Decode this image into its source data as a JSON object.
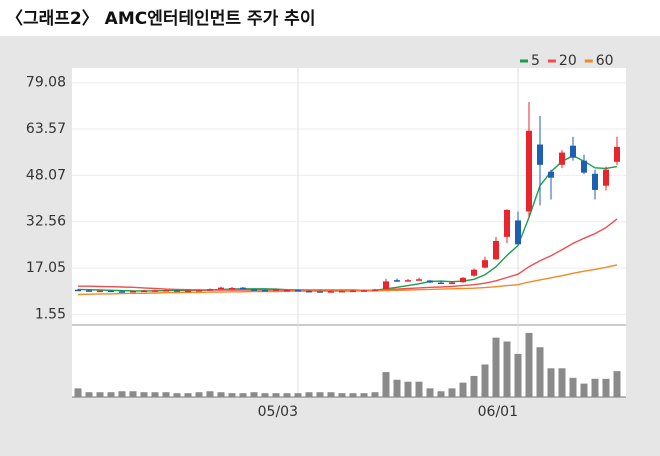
{
  "chart_data": {
    "type": "candlestick",
    "title": "〈그래프2〉 AMC엔터테인먼트 주가 추이",
    "categories": [
      null,
      null,
      null,
      null,
      null,
      null,
      null,
      null,
      null,
      null,
      null,
      null,
      null,
      null,
      null,
      null,
      null,
      null,
      null,
      null,
      "05/03",
      null,
      null,
      null,
      null,
      null,
      null,
      null,
      null,
      null,
      null,
      null,
      null,
      null,
      null,
      null,
      null,
      null,
      null,
      null,
      "06/01",
      null,
      null,
      null,
      null,
      null,
      null,
      null,
      null,
      null
    ],
    "open": [
      9.8,
      9.6,
      9.4,
      9.5,
      9.3,
      9.2,
      9.4,
      9.5,
      9.6,
      9.6,
      9.4,
      9.5,
      9.7,
      10.1,
      10.3,
      10.5,
      9.9,
      9.7,
      9.8,
      9.6,
      9.7,
      9.4,
      9.3,
      9.2,
      9.3,
      9.4,
      9.5,
      9.6,
      10.0,
      13.0,
      12.9,
      13.1,
      12.9,
      12.2,
      12.1,
      12.3,
      14.5,
      17.2,
      20.0,
      27.5,
      33.0,
      36.0,
      58.4,
      49.3,
      51.6,
      58.0,
      53.0,
      48.6,
      44.6,
      52.6
    ],
    "high": [
      10.1,
      9.9,
      9.7,
      9.7,
      9.6,
      9.6,
      9.7,
      9.8,
      9.9,
      9.8,
      9.7,
      9.9,
      10.2,
      10.8,
      10.7,
      10.7,
      10.1,
      9.9,
      10.1,
      9.9,
      9.9,
      9.6,
      9.5,
      9.5,
      9.6,
      9.7,
      9.8,
      10.1,
      13.5,
      13.6,
      13.4,
      13.8,
      13.1,
      12.8,
      12.4,
      14.0,
      16.9,
      20.9,
      27.5,
      36.7,
      36.0,
      72.6,
      68.0,
      50.0,
      56.5,
      61.0,
      55.0,
      50.0,
      51.0,
      61.0
    ],
    "low": [
      9.5,
      9.3,
      9.2,
      9.2,
      9.0,
      9.1,
      9.2,
      9.3,
      9.4,
      9.3,
      9.2,
      9.3,
      9.5,
      10.0,
      10.1,
      9.9,
      9.6,
      9.4,
      9.6,
      9.5,
      9.3,
      9.2,
      9.1,
      9.1,
      9.2,
      9.3,
      9.4,
      9.5,
      9.9,
      12.4,
      12.6,
      12.9,
      12.0,
      11.9,
      11.8,
      12.2,
      14.2,
      17.0,
      19.8,
      25.5,
      25.0,
      34.0,
      38.0,
      40.0,
      50.5,
      53.0,
      48.5,
      40.0,
      43.0,
      51.5
    ],
    "close": [
      9.6,
      9.4,
      9.5,
      9.3,
      9.1,
      9.4,
      9.5,
      9.6,
      9.7,
      9.4,
      9.5,
      9.7,
      10.0,
      10.5,
      10.4,
      10.0,
      9.8,
      9.6,
      9.9,
      9.7,
      9.4,
      9.3,
      9.2,
      9.3,
      9.4,
      9.5,
      9.6,
      9.9,
      12.6,
      12.8,
      13.0,
      13.3,
      12.2,
      12.1,
      12.2,
      13.8,
      16.5,
      19.7,
      26.1,
      36.5,
      25.0,
      63.0,
      51.6,
      47.3,
      55.7,
      54.0,
      49.0,
      43.2,
      50.0,
      57.6
    ],
    "up_color": "#e8242c",
    "down_color": "#1e5fb4",
    "ylim": [
      -2,
      84
    ],
    "yticks": [
      1.55,
      17.05,
      32.56,
      48.07,
      63.57,
      79.08
    ],
    "grid": true,
    "legend": "top-right",
    "series": [
      {
        "name": "5",
        "color": "#1a9e4a",
        "values": [
          9.9,
          9.8,
          9.7,
          9.6,
          9.5,
          9.4,
          9.4,
          9.4,
          9.5,
          9.5,
          9.5,
          9.6,
          9.7,
          9.9,
          10.0,
          10.1,
          10.1,
          10.1,
          10.0,
          9.8,
          9.7,
          9.6,
          9.5,
          9.4,
          9.3,
          9.4,
          9.5,
          9.6,
          10.1,
          10.6,
          11.2,
          11.8,
          12.6,
          12.7,
          12.5,
          12.7,
          13.3,
          14.8,
          17.5,
          21.3,
          24.6,
          34.0,
          44.6,
          49.3,
          52.7,
          54.7,
          52.8,
          50.6,
          50.4,
          51.0
        ]
      },
      {
        "name": "20",
        "color": "#f04e4e",
        "values": [
          11.0,
          11.0,
          10.9,
          10.8,
          10.7,
          10.6,
          10.4,
          10.2,
          10.0,
          9.9,
          9.8,
          9.7,
          9.7,
          9.7,
          9.7,
          9.7,
          9.7,
          9.7,
          9.7,
          9.7,
          9.7,
          9.7,
          9.7,
          9.7,
          9.7,
          9.7,
          9.6,
          9.6,
          9.8,
          10.0,
          10.2,
          10.4,
          10.6,
          10.7,
          10.9,
          11.2,
          11.5,
          12.0,
          12.8,
          13.9,
          15.0,
          17.5,
          19.5,
          21.2,
          23.2,
          25.3,
          27.0,
          28.6,
          30.6,
          33.5
        ]
      },
      {
        "name": "60",
        "color": "#f08a24",
        "values": [
          8.2,
          8.3,
          8.4,
          8.4,
          8.5,
          8.6,
          8.6,
          8.7,
          8.8,
          8.8,
          8.9,
          8.9,
          9.0,
          9.0,
          9.1,
          9.1,
          9.2,
          9.2,
          9.2,
          9.3,
          9.3,
          9.3,
          9.3,
          9.3,
          9.4,
          9.4,
          9.4,
          9.4,
          9.5,
          9.6,
          9.7,
          9.8,
          9.9,
          10.0,
          10.1,
          10.2,
          10.3,
          10.5,
          10.8,
          11.2,
          11.5,
          12.4,
          13.1,
          13.8,
          14.5,
          15.3,
          16.0,
          16.6,
          17.3,
          18.1
        ]
      }
    ],
    "volume": {
      "color": "#8a8a8a",
      "ylim": [
        0,
        700
      ],
      "values": [
        90,
        50,
        50,
        50,
        60,
        60,
        50,
        50,
        50,
        40,
        40,
        50,
        60,
        50,
        40,
        40,
        50,
        40,
        40,
        40,
        40,
        50,
        50,
        50,
        40,
        40,
        40,
        50,
        260,
        180,
        160,
        160,
        90,
        60,
        90,
        150,
        220,
        340,
        620,
        580,
        450,
        670,
        520,
        300,
        300,
        200,
        140,
        190,
        190,
        270
      ]
    }
  }
}
